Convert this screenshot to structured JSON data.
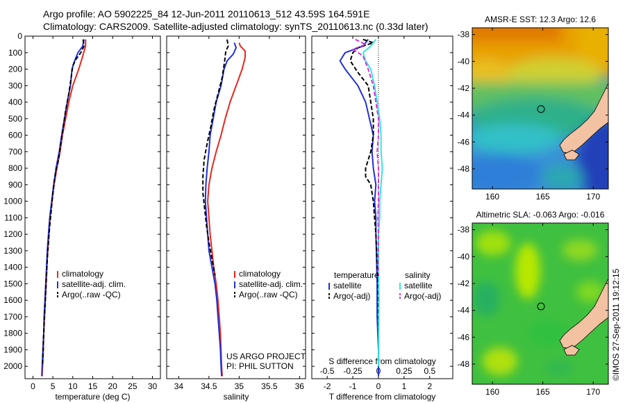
{
  "header": {
    "line1": "Argo profile: AO 5902225_84 12-Jun-2011 20110613_512 43.59S 164.591E",
    "line2": "Climatology: CARS2009. Satellite-adjusted climatology: synTS_20110613.nc (0.33d later)"
  },
  "footer": {
    "project": "US ARGO PROJECT",
    "pi": "PI: PHIL SUTTON",
    "stamp": "©IMOS 27-Sep-2011 19:12:15"
  },
  "colors": {
    "climatology": "#e8261e",
    "satellite": "#1f2fd6",
    "argo": "#000000",
    "satellite_diff_s": "#33e6e6",
    "argo_diff_s": "#d633d6"
  },
  "chart_data": [
    {
      "id": "temperature",
      "type": "line",
      "xlabel": "temperature (deg C)",
      "ylabel": "",
      "xlim": [
        -2,
        32
      ],
      "ylim": [
        2075,
        0
      ],
      "xticks": [
        0,
        5,
        10,
        15,
        20,
        25,
        30
      ],
      "yticks": [
        0,
        100,
        200,
        300,
        400,
        500,
        600,
        700,
        800,
        900,
        1000,
        1100,
        1200,
        1300,
        1400,
        1500,
        1600,
        1700,
        1800,
        1900,
        2000
      ],
      "legend": [
        "climatology",
        "satellite-adj. clim.",
        "Argo(..raw -QC)"
      ],
      "legend_loc": "lower-center",
      "series": [
        {
          "name": "climatology",
          "style": "solid",
          "color": "#e8261e",
          "points": [
            [
              13.2,
              20
            ],
            [
              13.2,
              60
            ],
            [
              12.5,
              120
            ],
            [
              11.5,
              200
            ],
            [
              10.0,
              300
            ],
            [
              9.0,
              400
            ],
            [
              8.2,
              500
            ],
            [
              7.4,
              600
            ],
            [
              6.8,
              700
            ],
            [
              6.0,
              800
            ],
            [
              5.3,
              900
            ],
            [
              4.8,
              1000
            ],
            [
              4.3,
              1100
            ],
            [
              4.0,
              1200
            ],
            [
              3.7,
              1300
            ],
            [
              3.5,
              1400
            ],
            [
              3.3,
              1500
            ],
            [
              3.1,
              1600
            ],
            [
              2.9,
              1700
            ],
            [
              2.7,
              1800
            ],
            [
              2.6,
              1900
            ],
            [
              2.4,
              2000
            ],
            [
              2.3,
              2060
            ]
          ]
        },
        {
          "name": "satellite-adj. clim.",
          "style": "solid",
          "color": "#1f2fd6",
          "points": [
            [
              12.8,
              20
            ],
            [
              12.5,
              60
            ],
            [
              11.3,
              100
            ],
            [
              10.3,
              160
            ],
            [
              9.8,
              200
            ],
            [
              9.4,
              300
            ],
            [
              8.6,
              400
            ],
            [
              7.9,
              500
            ],
            [
              7.2,
              600
            ],
            [
              6.6,
              700
            ],
            [
              5.8,
              800
            ],
            [
              5.2,
              900
            ],
            [
              4.7,
              1000
            ],
            [
              4.2,
              1100
            ],
            [
              3.9,
              1200
            ],
            [
              3.6,
              1300
            ],
            [
              3.4,
              1400
            ],
            [
              3.2,
              1500
            ],
            [
              3.0,
              1600
            ],
            [
              2.8,
              1700
            ],
            [
              2.7,
              1800
            ],
            [
              2.5,
              1900
            ],
            [
              2.3,
              2000
            ],
            [
              2.2,
              2060
            ]
          ]
        },
        {
          "name": "Argo(..raw -QC)",
          "style": "dashed",
          "color": "#000000",
          "points": [
            [
              12.6,
              20
            ],
            [
              12.8,
              60
            ],
            [
              12.0,
              100
            ],
            [
              10.8,
              140
            ],
            [
              10.0,
              180
            ],
            [
              9.6,
              250
            ],
            [
              9.0,
              350
            ],
            [
              8.2,
              450
            ],
            [
              7.6,
              550
            ],
            [
              7.0,
              650
            ],
            [
              6.4,
              750
            ],
            [
              5.9,
              800
            ],
            [
              5.4,
              870
            ],
            [
              5.0,
              950
            ],
            [
              4.6,
              1050
            ],
            [
              4.2,
              1150
            ],
            [
              3.9,
              1250
            ],
            [
              3.6,
              1350
            ],
            [
              3.4,
              1450
            ],
            [
              3.2,
              1550
            ],
            [
              3.0,
              1650
            ],
            [
              2.8,
              1750
            ],
            [
              2.6,
              1850
            ],
            [
              2.5,
              1950
            ],
            [
              2.4,
              2000
            ]
          ]
        }
      ]
    },
    {
      "id": "salinity",
      "type": "line",
      "xlabel": "salinity",
      "ylabel": "",
      "xlim": [
        33.8,
        36.1
      ],
      "ylim": [
        2075,
        0
      ],
      "xticks": [
        34,
        34.5,
        35,
        35.5,
        36
      ],
      "legend": [
        "climatology",
        "satellite-adj. clim.",
        "Argo(..raw -QC)"
      ],
      "legend_loc": "lower-center",
      "series": [
        {
          "name": "climatology",
          "style": "solid",
          "color": "#e8261e",
          "points": [
            [
              35.0,
              40
            ],
            [
              35.02,
              60
            ],
            [
              35.1,
              90
            ],
            [
              35.1,
              130
            ],
            [
              35.05,
              200
            ],
            [
              34.95,
              300
            ],
            [
              34.85,
              400
            ],
            [
              34.77,
              500
            ],
            [
              34.7,
              600
            ],
            [
              34.62,
              700
            ],
            [
              34.55,
              800
            ],
            [
              34.5,
              900
            ],
            [
              34.48,
              1000
            ],
            [
              34.5,
              1100
            ],
            [
              34.52,
              1200
            ],
            [
              34.55,
              1300
            ],
            [
              34.58,
              1400
            ],
            [
              34.62,
              1500
            ],
            [
              34.65,
              1600
            ],
            [
              34.67,
              1700
            ],
            [
              34.69,
              1800
            ],
            [
              34.7,
              1900
            ],
            [
              34.71,
              2000
            ],
            [
              34.72,
              2060
            ]
          ]
        },
        {
          "name": "satellite-adj. clim.",
          "style": "solid",
          "color": "#1f2fd6",
          "points": [
            [
              34.92,
              40
            ],
            [
              34.95,
              70
            ],
            [
              34.9,
              110
            ],
            [
              34.8,
              150
            ],
            [
              34.75,
              200
            ],
            [
              34.7,
              300
            ],
            [
              34.62,
              400
            ],
            [
              34.57,
              500
            ],
            [
              34.52,
              600
            ],
            [
              34.5,
              700
            ],
            [
              34.47,
              800
            ],
            [
              34.45,
              900
            ],
            [
              34.44,
              1000
            ],
            [
              34.46,
              1100
            ],
            [
              34.48,
              1200
            ],
            [
              34.5,
              1300
            ],
            [
              34.55,
              1400
            ],
            [
              34.6,
              1500
            ],
            [
              34.63,
              1600
            ],
            [
              34.65,
              1700
            ],
            [
              34.67,
              1800
            ],
            [
              34.69,
              1900
            ],
            [
              34.7,
              2000
            ],
            [
              34.71,
              2060
            ]
          ]
        },
        {
          "name": "Argo(..raw -QC)",
          "style": "dashed",
          "color": "#000000",
          "points": [
            [
              34.8,
              20
            ],
            [
              34.82,
              60
            ],
            [
              34.78,
              90
            ],
            [
              34.76,
              150
            ],
            [
              34.72,
              250
            ],
            [
              34.65,
              350
            ],
            [
              34.58,
              450
            ],
            [
              34.53,
              550
            ],
            [
              34.47,
              650
            ],
            [
              34.42,
              750
            ],
            [
              34.4,
              850
            ],
            [
              34.4,
              950
            ],
            [
              34.43,
              1050
            ],
            [
              34.46,
              1150
            ],
            [
              34.5,
              1250
            ],
            [
              34.55,
              1350
            ],
            [
              34.6,
              1450
            ]
          ]
        }
      ]
    },
    {
      "id": "differences",
      "type": "line",
      "xlabel": "T difference from climatology",
      "xlabel_top": "S difference from climatology",
      "ylabel": "",
      "xlim": [
        -2.6,
        2.9
      ],
      "ylim": [
        2075,
        0
      ],
      "xticks": [
        -2,
        -1,
        0,
        1,
        2
      ],
      "xtick_labels": [
        "-2",
        "-1",
        "0",
        "1",
        "2"
      ],
      "s_ticks": [
        -0.5,
        -0.25,
        0,
        0.25,
        0.5
      ],
      "s_tick_labels": [
        "-0.5",
        "-0.25",
        "0",
        "0.25",
        "0.5"
      ],
      "legend_titles": [
        "temperature",
        "salinity"
      ],
      "legend": [
        "satellite",
        "Argo(-adj)",
        "satellite",
        "Argo(-adj)"
      ],
      "legend_loc": "lower-center",
      "zero_line": true,
      "series": [
        {
          "name": "satellite",
          "style": "solid",
          "color": "#1f2fd6",
          "points": [
            [
              -0.4,
              20
            ],
            [
              -0.6,
              60
            ],
            [
              -1.3,
              100
            ],
            [
              -1.5,
              150
            ],
            [
              -1.3,
              200
            ],
            [
              -0.8,
              300
            ],
            [
              -0.5,
              400
            ],
            [
              -0.35,
              500
            ],
            [
              -0.2,
              600
            ],
            [
              -0.25,
              700
            ],
            [
              -0.2,
              800
            ],
            [
              -0.1,
              900
            ],
            [
              -0.15,
              1000
            ],
            [
              -0.1,
              1100
            ],
            [
              -0.1,
              1200
            ],
            [
              -0.08,
              1300
            ],
            [
              -0.05,
              1500
            ],
            [
              -0.05,
              1700
            ],
            [
              0,
              1900
            ],
            [
              0,
              2060
            ]
          ]
        },
        {
          "name": "Argo(-adj)",
          "style": "dashed",
          "color": "#000000",
          "points": [
            [
              -0.6,
              20
            ],
            [
              -0.2,
              40
            ],
            [
              -0.8,
              70
            ],
            [
              -1.0,
              100
            ],
            [
              -1.1,
              150
            ],
            [
              -0.8,
              220
            ],
            [
              -0.4,
              300
            ],
            [
              -0.3,
              400
            ],
            [
              -0.2,
              500
            ],
            [
              -0.2,
              600
            ],
            [
              -0.3,
              700
            ],
            [
              -0.5,
              800
            ],
            [
              -0.5,
              850
            ],
            [
              -0.3,
              900
            ],
            [
              -0.2,
              1000
            ],
            [
              -0.15,
              1100
            ],
            [
              -0.1,
              1200
            ],
            [
              -0.05,
              1400
            ],
            [
              0,
              1600
            ],
            [
              0,
              2000
            ]
          ]
        },
        {
          "name": "satellite",
          "style": "solid",
          "color": "#33e6e6",
          "points": [
            [
              -0.1,
              20
            ],
            [
              -0.3,
              60
            ],
            [
              -0.6,
              100
            ],
            [
              -0.5,
              150
            ],
            [
              -0.3,
              200
            ],
            [
              -0.15,
              300
            ],
            [
              -0.05,
              400
            ],
            [
              0.05,
              500
            ],
            [
              0.1,
              600
            ],
            [
              0.1,
              700
            ],
            [
              0.15,
              800
            ],
            [
              0.1,
              900
            ],
            [
              0.05,
              1000
            ],
            [
              0.05,
              1100
            ],
            [
              0,
              1200
            ],
            [
              0,
              1400
            ],
            [
              0.02,
              1600
            ],
            [
              0,
              2000
            ]
          ]
        },
        {
          "name": "Argo(-adj)",
          "style": "dashed",
          "color": "#d633d6",
          "points": [
            [
              -0.9,
              20
            ],
            [
              -0.5,
              50
            ],
            [
              -1.0,
              80
            ],
            [
              -0.6,
              120
            ],
            [
              -0.4,
              200
            ],
            [
              -0.2,
              300
            ],
            [
              -0.1,
              400
            ],
            [
              0,
              500
            ],
            [
              0,
              600
            ],
            [
              -0.05,
              700
            ],
            [
              0,
              800
            ],
            [
              0,
              900
            ],
            [
              0,
              1000
            ],
            [
              -0.02,
              1100
            ],
            [
              0,
              1200
            ],
            [
              -0.02,
              1350
            ],
            [
              0,
              1450
            ]
          ]
        }
      ]
    },
    {
      "id": "sst_map",
      "type": "heatmap",
      "title": "AMSR-E SST: 12.3 Argo: 12.6",
      "xlabel": "",
      "ylabel": "",
      "xlim": [
        158,
        171.5
      ],
      "ylim": [
        -49.5,
        -37.5
      ],
      "xticks": [
        160,
        165,
        170
      ],
      "yticks": [
        -38,
        -40,
        -42,
        -44,
        -46,
        -48
      ],
      "marker": {
        "lon": 164.59,
        "lat": -43.59
      }
    },
    {
      "id": "sla_map",
      "type": "heatmap",
      "title": "Altimetric SLA: -0.063 Argo: -0.016",
      "xlabel": "",
      "ylabel": "",
      "xlim": [
        158,
        171.5
      ],
      "ylim": [
        -49.5,
        -37.5
      ],
      "xticks": [
        160,
        165,
        170
      ],
      "yticks": [
        -38,
        -40,
        -42,
        -44,
        -46,
        -48
      ],
      "marker": {
        "lon": 164.59,
        "lat": -43.59
      }
    }
  ]
}
